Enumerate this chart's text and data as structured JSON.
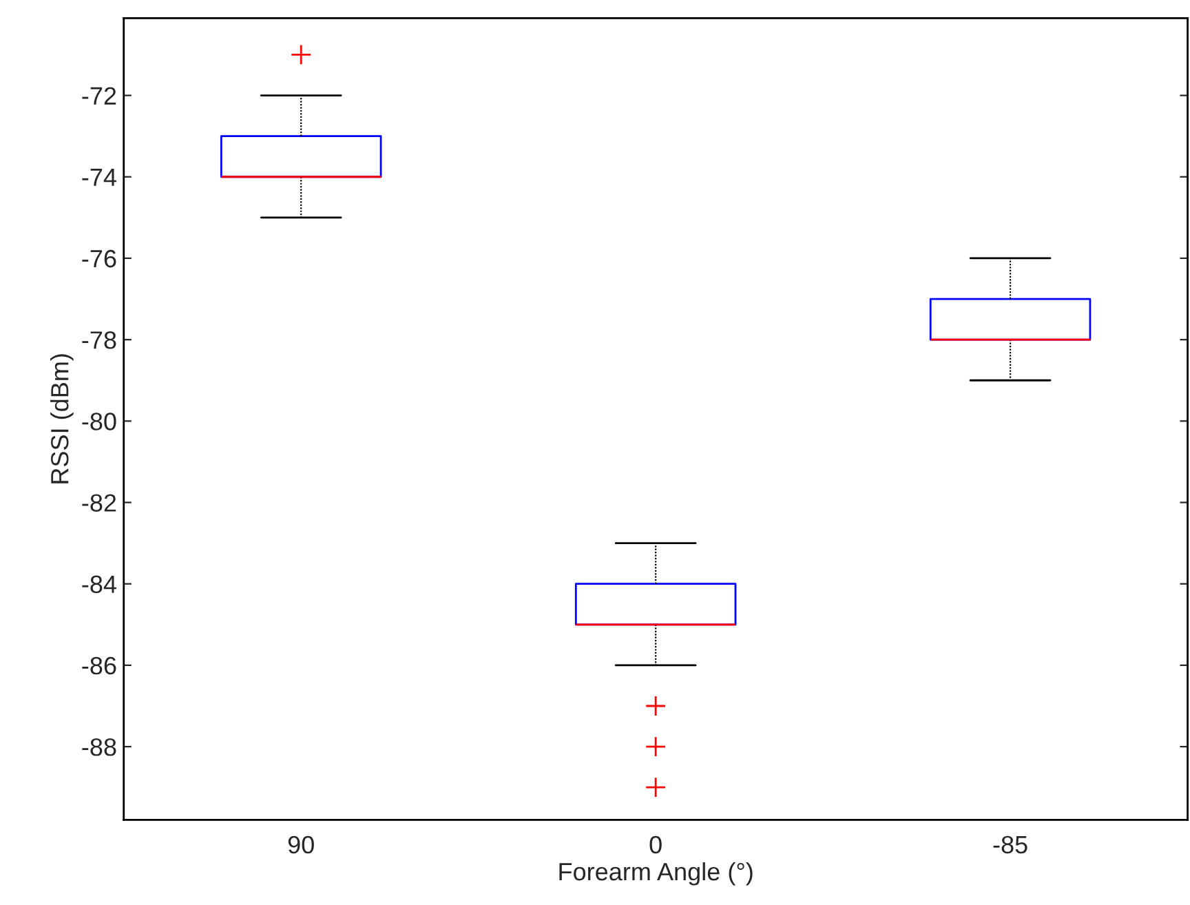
{
  "chart_data": {
    "type": "box",
    "xlabel": "Forearm Angle (°)",
    "ylabel": "RSSI (dBm)",
    "categories": [
      "90",
      "0",
      "-85"
    ],
    "boxes": [
      {
        "low": -75,
        "q1": -74,
        "median": -74,
        "q3": -73,
        "high": -72,
        "outliers": [
          -71
        ]
      },
      {
        "low": -86,
        "q1": -85,
        "median": -85,
        "q3": -84,
        "high": -83,
        "outliers": [
          -87,
          -88,
          -89
        ]
      },
      {
        "low": -79,
        "q1": -78,
        "median": -78,
        "q3": -77,
        "high": -76
      }
    ],
    "color": "#0000ff",
    "ylim": [
      -89.8,
      -70.1
    ],
    "yticks": [
      -88,
      -86,
      -84,
      -82,
      -80,
      -78,
      -76,
      -74,
      -72
    ],
    "grid": false,
    "legend": false
  }
}
